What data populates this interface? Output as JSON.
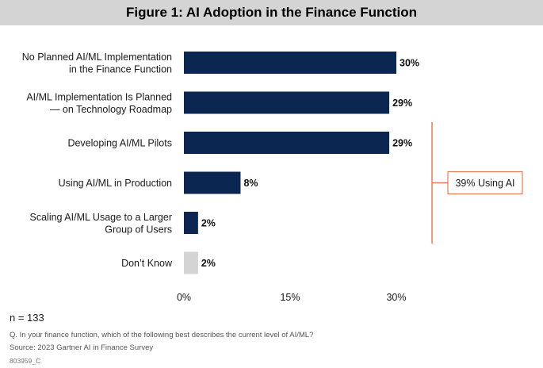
{
  "title": "Figure 1: AI Adoption in the Finance Function",
  "chart_data": {
    "type": "bar",
    "orientation": "horizontal",
    "categories": [
      [
        "No Planned AI/ML Implementation",
        "in the Finance Function"
      ],
      [
        "AI/ML Implementation Is Planned",
        "— on Technology Roadmap"
      ],
      [
        "Developing AI/ML Pilots"
      ],
      [
        "Using AI/ML in Production"
      ],
      [
        "Scaling AI/ML Usage to a Larger",
        "Group of Users"
      ],
      [
        "Don’t Know"
      ]
    ],
    "values": [
      30,
      29,
      29,
      8,
      2,
      2
    ],
    "value_labels": [
      "30%",
      "29%",
      "29%",
      "8%",
      "2%",
      "2%"
    ],
    "bar_colors": [
      "#0b2650",
      "#0b2650",
      "#0b2650",
      "#0b2650",
      "#0b2650",
      "#d4d4d4"
    ],
    "xlim": [
      0,
      30
    ],
    "xticks": [
      0,
      15,
      30
    ],
    "xtick_labels": [
      "0%",
      "15%",
      "30%"
    ],
    "grid": false,
    "legend": false,
    "annotation": {
      "text": "39% Using AI",
      "spans_categories": [
        2,
        3,
        4
      ],
      "color": "#e87b52"
    }
  },
  "footer": {
    "n": "n = 133",
    "question": "Q. In your finance function, which of the following best describes the current level of AI/ML?",
    "source": "Source: 2023 Gartner AI in Finance Survey",
    "code": "803959_C"
  }
}
